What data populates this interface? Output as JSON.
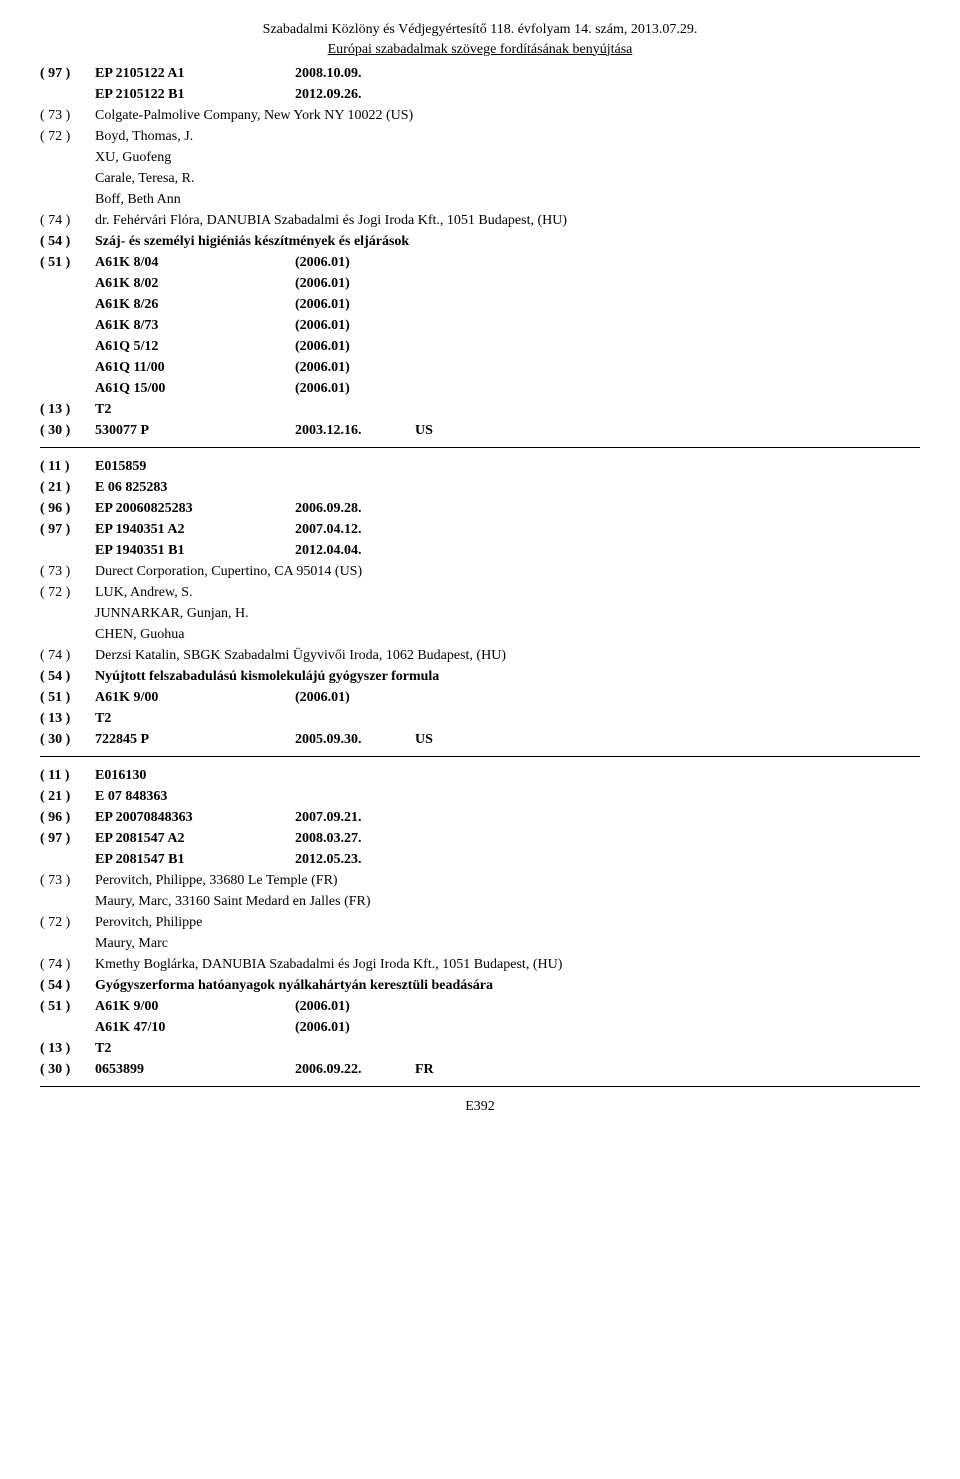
{
  "header": {
    "line1": "Szabadalmi Közlöny és Védjegyértesítő 118. évfolyam 14. szám, 2013.07.29.",
    "line2": "Európai szabadalmak szövege fordításának benyújtása"
  },
  "records": [
    {
      "lines": [
        {
          "code": "( 97 )",
          "cols": [
            "EP 2105122 A1",
            "2008.10.09."
          ],
          "bold": true
        },
        {
          "code": "",
          "cols": [
            "EP 2105122 B1",
            "2012.09.26."
          ],
          "bold": true
        },
        {
          "code": "( 73 )",
          "text": "Colgate-Palmolive Company, New York NY 10022 (US)"
        },
        {
          "code": "( 72 )",
          "text": "Boyd, Thomas, J."
        },
        {
          "code": "",
          "text": "XU, Guofeng"
        },
        {
          "code": "",
          "text": "Carale, Teresa, R."
        },
        {
          "code": "",
          "text": "Boff, Beth Ann"
        },
        {
          "code": "( 74 )",
          "text": "dr. Fehérvári Flóra, DANUBIA Szabadalmi és Jogi Iroda Kft., 1051 Budapest, (HU)"
        },
        {
          "code": "( 54 )",
          "text": "Száj- és személyi higiéniás készítmények és eljárások",
          "bold": true
        },
        {
          "code": "( 51 )",
          "cols": [
            "A61K 8/04",
            "(2006.01)"
          ],
          "bold": true
        },
        {
          "code": "",
          "cols": [
            "A61K 8/02",
            "(2006.01)"
          ],
          "bold": true
        },
        {
          "code": "",
          "cols": [
            "A61K 8/26",
            "(2006.01)"
          ],
          "bold": true
        },
        {
          "code": "",
          "cols": [
            "A61K 8/73",
            "(2006.01)"
          ],
          "bold": true
        },
        {
          "code": "",
          "cols": [
            "A61Q 5/12",
            "(2006.01)"
          ],
          "bold": true
        },
        {
          "code": "",
          "cols": [
            "A61Q 11/00",
            "(2006.01)"
          ],
          "bold": true
        },
        {
          "code": "",
          "cols": [
            "A61Q 15/00",
            "(2006.01)"
          ],
          "bold": true
        },
        {
          "code": "( 13 )",
          "text": "T2",
          "bold": true
        },
        {
          "code": "( 30 )",
          "cols": [
            "530077 P",
            "2003.12.16.",
            "US"
          ],
          "bold": true
        }
      ]
    },
    {
      "lines": [
        {
          "code": "( 11 )",
          "text": "E015859",
          "bold": true
        },
        {
          "code": "( 21 )",
          "text": "E 06 825283",
          "bold": true
        },
        {
          "code": "( 96 )",
          "cols": [
            "EP 20060825283",
            "2006.09.28."
          ],
          "bold": true
        },
        {
          "code": "( 97 )",
          "cols": [
            "EP 1940351 A2",
            "2007.04.12."
          ],
          "bold": true
        },
        {
          "code": "",
          "cols": [
            "EP 1940351 B1",
            "2012.04.04."
          ],
          "bold": true
        },
        {
          "code": "( 73 )",
          "text": "Durect Corporation, Cupertino, CA 95014 (US)"
        },
        {
          "code": "( 72 )",
          "text": "LUK, Andrew, S."
        },
        {
          "code": "",
          "text": "JUNNARKAR, Gunjan, H."
        },
        {
          "code": "",
          "text": "CHEN, Guohua"
        },
        {
          "code": "( 74 )",
          "text": "Derzsi Katalin, SBGK Szabadalmi Ügyvivői Iroda, 1062 Budapest, (HU)"
        },
        {
          "code": "( 54 )",
          "text": "Nyújtott felszabadulású kismolekulájú gyógyszer formula",
          "bold": true
        },
        {
          "code": "( 51 )",
          "cols": [
            "A61K 9/00",
            "(2006.01)"
          ],
          "bold": true
        },
        {
          "code": "( 13 )",
          "text": "T2",
          "bold": true
        },
        {
          "code": "( 30 )",
          "cols": [
            "722845 P",
            "2005.09.30.",
            "US"
          ],
          "bold": true
        }
      ]
    },
    {
      "lines": [
        {
          "code": "( 11 )",
          "text": "E016130",
          "bold": true
        },
        {
          "code": "( 21 )",
          "text": "E 07 848363",
          "bold": true
        },
        {
          "code": "( 96 )",
          "cols": [
            "EP 20070848363",
            "2007.09.21."
          ],
          "bold": true
        },
        {
          "code": "( 97 )",
          "cols": [
            "EP 2081547 A2",
            "2008.03.27."
          ],
          "bold": true
        },
        {
          "code": "",
          "cols": [
            "EP 2081547 B1",
            "2012.05.23."
          ],
          "bold": true
        },
        {
          "code": "( 73 )",
          "text": "Perovitch, Philippe, 33680 Le Temple (FR)"
        },
        {
          "code": "",
          "text": "Maury, Marc, 33160 Saint Medard en Jalles (FR)"
        },
        {
          "code": "( 72 )",
          "text": "Perovitch, Philippe"
        },
        {
          "code": "",
          "text": "Maury, Marc"
        },
        {
          "code": "( 74 )",
          "text": "Kmethy Boglárka, DANUBIA Szabadalmi és Jogi Iroda Kft., 1051 Budapest, (HU)"
        },
        {
          "code": "( 54 )",
          "text": "Gyógyszerforma hatóanyagok nyálkahártyán keresztüli beadására",
          "bold": true
        },
        {
          "code": "( 51 )",
          "cols": [
            "A61K 9/00",
            "(2006.01)"
          ],
          "bold": true
        },
        {
          "code": "",
          "cols": [
            "A61K 47/10",
            "(2006.01)"
          ],
          "bold": true
        },
        {
          "code": "( 13 )",
          "text": "T2",
          "bold": true
        },
        {
          "code": "( 30 )",
          "cols": [
            "0653899",
            "2006.09.22.",
            "FR"
          ],
          "bold": true
        }
      ]
    }
  ],
  "page_number": "E392"
}
